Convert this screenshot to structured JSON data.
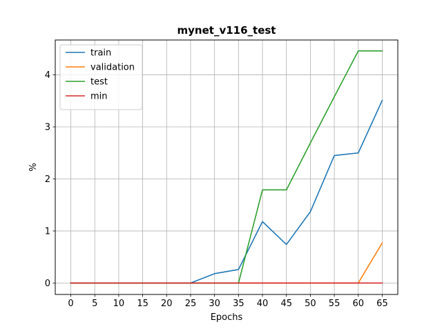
{
  "chart_data": {
    "type": "line",
    "title": "mynet_v116_test",
    "xlabel": "Epochs",
    "ylabel": "%",
    "x": [
      0,
      5,
      10,
      15,
      20,
      25,
      30,
      35,
      40,
      45,
      50,
      55,
      60,
      65
    ],
    "xticks": [
      0,
      5,
      10,
      15,
      20,
      25,
      30,
      35,
      40,
      45,
      50,
      55,
      60,
      65
    ],
    "yticks": [
      0,
      1,
      2,
      3,
      4
    ],
    "xlim": [
      -3.25,
      68.25
    ],
    "ylim": [
      -0.22,
      4.67
    ],
    "grid": true,
    "legend_position": "upper-left",
    "series": [
      {
        "name": "train",
        "color": "#1f77b4",
        "values": [
          0,
          0,
          0,
          0,
          0,
          0,
          0.18,
          0.26,
          1.18,
          0.74,
          1.37,
          2.45,
          2.5,
          3.51
        ]
      },
      {
        "name": "validation",
        "color": "#ff7f0e",
        "values": [
          0,
          0,
          0,
          0,
          0,
          0,
          0,
          0,
          0,
          0,
          0,
          0,
          0,
          0.77
        ]
      },
      {
        "name": "test",
        "color": "#2ca02c",
        "values": [
          0,
          0,
          0,
          0,
          0,
          0,
          0,
          0,
          1.79,
          1.79,
          2.69,
          3.58,
          4.46,
          4.46
        ]
      },
      {
        "name": "min",
        "color": "#d62728",
        "values": [
          0,
          0,
          0,
          0,
          0,
          0,
          0,
          0,
          0,
          0,
          0,
          0,
          0,
          0
        ]
      }
    ]
  }
}
